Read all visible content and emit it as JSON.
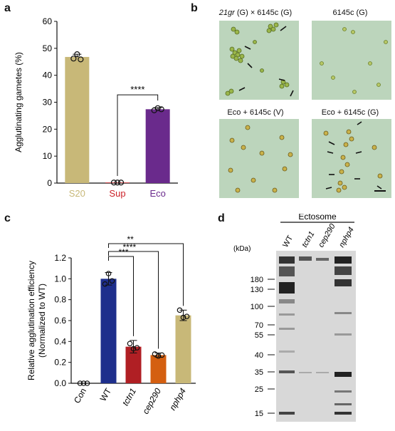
{
  "panels": {
    "a": "a",
    "b": "b",
    "c": "c",
    "d": "d"
  },
  "panel_a": {
    "chart_data": {
      "type": "bar",
      "categories": [
        "S20",
        "Sup",
        "Eco"
      ],
      "values": [
        46.8,
        0.2,
        27.4
      ],
      "points": [
        [
          46.2,
          47.8,
          45.9
        ],
        [
          0.2,
          0.2,
          0.2
        ],
        [
          27.0,
          27.8,
          27.4
        ]
      ],
      "errors": [
        1.0,
        0.2,
        0.6
      ],
      "colors": [
        "#c8b878",
        "#cc2229",
        "#6a2a8c"
      ],
      "ylabel": "Agglutinating gametes (%)",
      "ylim": [
        0,
        60
      ],
      "yticks": [
        0,
        10,
        20,
        30,
        40,
        50,
        60
      ],
      "significance": [
        {
          "from": "Sup",
          "to": "Eco",
          "label": "****"
        }
      ]
    }
  },
  "panel_b": {
    "images": [
      {
        "title": "(G) × 6145c (G)",
        "title_italic_prefix": "21gr"
      },
      {
        "title": "6145c (G)",
        "title_italic_prefix": ""
      },
      {
        "title": "Eco + 6145c (V)",
        "title_italic_prefix": ""
      },
      {
        "title": "Eco + 6145c (G)",
        "title_italic_prefix": ""
      }
    ]
  },
  "panel_c": {
    "chart_data": {
      "type": "bar",
      "categories": [
        "Con",
        "WT",
        "tctn1",
        "cep290",
        "nphp4"
      ],
      "italic": [
        false,
        false,
        true,
        true,
        true
      ],
      "values": [
        0.0,
        1.0,
        0.35,
        0.27,
        0.65
      ],
      "points": [
        [
          0,
          0,
          0
        ],
        [
          0.95,
          1.05,
          0.98
        ],
        [
          0.38,
          0.33,
          0.34
        ],
        [
          0.28,
          0.26,
          0.27
        ],
        [
          0.7,
          0.63,
          0.64
        ]
      ],
      "errors": [
        0,
        0.06,
        0.06,
        0.02,
        0.05
      ],
      "colors": [
        "#1e2f8c",
        "#1e2f8c",
        "#b01f24",
        "#d45f10",
        "#c8b878"
      ],
      "ylabel": "Relative agglutination efficiency",
      "ylabel2": "(Normalized to WT)",
      "ylim": [
        0,
        1.2
      ],
      "yticks": [
        "0.0",
        "0.2",
        "0.4",
        "0.6",
        "0.8",
        "1.0",
        "1.2"
      ],
      "significance": [
        {
          "from": "WT",
          "to": "tctn1",
          "label": "***"
        },
        {
          "from": "WT",
          "to": "cep290",
          "label": "****"
        },
        {
          "from": "WT",
          "to": "nphp4",
          "label": "**"
        }
      ]
    }
  },
  "panel_d": {
    "title": "Ectosome",
    "kda_label": "(kDa)",
    "lanes": [
      "WT",
      "tctn1",
      "cep290",
      "nphp4"
    ],
    "lane_italic": [
      false,
      true,
      true,
      true
    ],
    "markers": [
      "180",
      "130",
      "100",
      "70",
      "55",
      "40",
      "35",
      "25",
      "15"
    ]
  }
}
